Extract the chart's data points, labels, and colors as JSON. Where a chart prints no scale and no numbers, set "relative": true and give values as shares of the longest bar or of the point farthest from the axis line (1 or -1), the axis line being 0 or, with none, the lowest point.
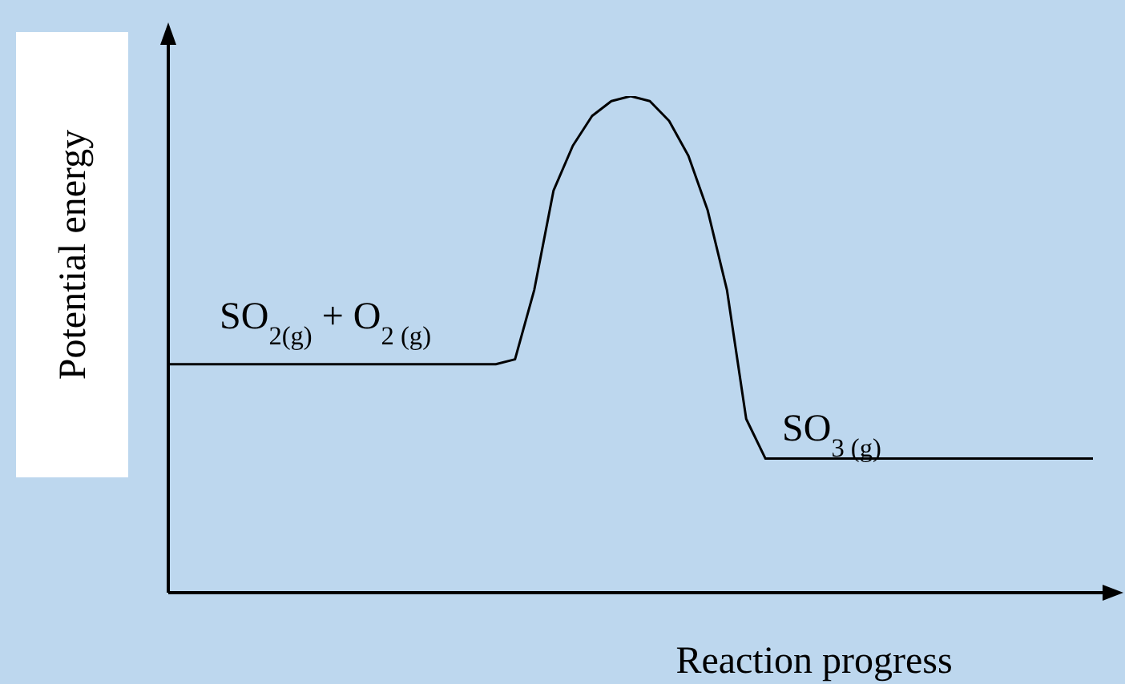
{
  "chart_data": {
    "type": "line",
    "relative": true,
    "xlabel": "Reaction progress",
    "ylabel": "Potential energy",
    "categories": [
      null,
      null,
      null,
      null,
      null,
      null,
      null,
      null,
      null,
      null,
      null,
      null,
      null,
      null,
      null,
      null,
      null,
      null,
      null,
      null,
      null,
      null,
      null,
      null,
      null,
      null,
      null,
      null,
      null,
      null,
      null,
      null,
      null,
      null,
      null,
      null,
      null,
      null,
      null,
      null,
      null,
      null,
      null,
      null,
      null,
      null,
      null,
      null,
      null
    ],
    "values": [
      0.46,
      0.46,
      0.46,
      0.46,
      0.46,
      0.46,
      0.46,
      0.46,
      0.46,
      0.46,
      0.46,
      0.46,
      0.46,
      0.46,
      0.46,
      0.46,
      0.46,
      0.46,
      0.47,
      0.61,
      0.81,
      0.9,
      0.96,
      0.99,
      1,
      0.99,
      0.95,
      0.88,
      0.77,
      0.61,
      0.35,
      0.27,
      0.27,
      0.27,
      0.27,
      0.27,
      0.27,
      0.27,
      0.27,
      0.27,
      0.27,
      0.27,
      0.27,
      0.27,
      0.27,
      0.27,
      0.27,
      0.27,
      0.27
    ],
    "color": "#000000",
    "marker": "none",
    "line_style": "solid",
    "annotations": [
      "SO$_{2(g)}$ + O$_{2 (g)}$",
      "SO$_{3 (g)}$"
    ]
  }
}
